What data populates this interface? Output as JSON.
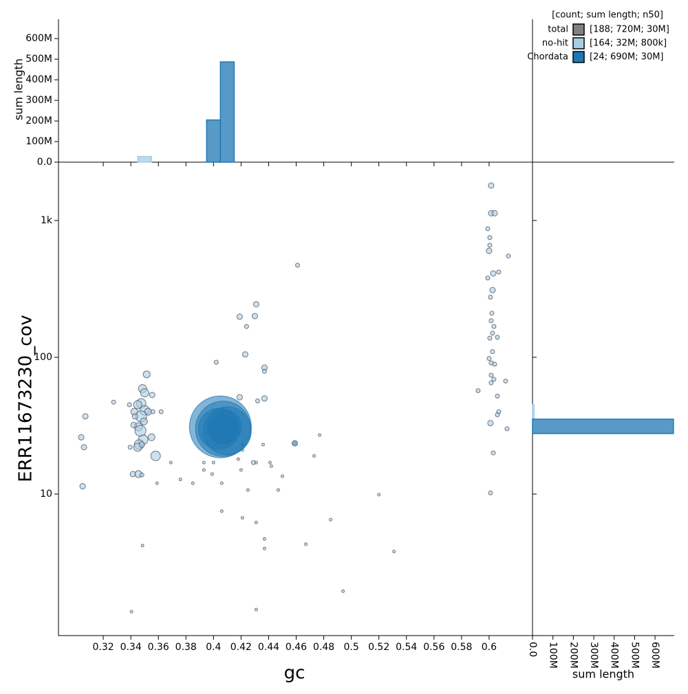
{
  "chart_data": {
    "type": "scatter",
    "x_label": "gc",
    "y_label": "ERR11673230_cov",
    "xlim": [
      0.2875,
      0.6315
    ],
    "ylim": [
      0.923,
      2670
    ],
    "log_y": true,
    "xticks": [
      0.32,
      0.34,
      0.36,
      0.38,
      0.4,
      0.42,
      0.44,
      0.46,
      0.48,
      0.5,
      0.52,
      0.54,
      0.56,
      0.58,
      0.6
    ],
    "yticks": [
      10,
      100,
      {
        "value": 1000,
        "label": "1k"
      }
    ],
    "legend_title": "[count; sum length; n50]",
    "series": [
      {
        "name": "total",
        "color": "#808080",
        "legend_label": "[188; 720M; 30M]",
        "x": [],
        "y": [],
        "lengths": []
      },
      {
        "name": "no-hit",
        "color": "#a6cee3",
        "legend_label": "[164; 32M; 800k]",
        "x": [
          0.6015,
          0.6015,
          0.604,
          0.599,
          0.6005,
          0.6005,
          0.6,
          0.614,
          0.607,
          0.603,
          0.599,
          0.6025,
          0.601,
          0.602,
          0.6015,
          0.6035,
          0.6025,
          0.606,
          0.6005,
          0.6025,
          0.6,
          0.6015,
          0.604,
          0.6015,
          0.612,
          0.6035,
          0.6015,
          0.592,
          0.606,
          0.607,
          0.606,
          0.601,
          0.613,
          0.603,
          0.601,
          0.431,
          0.419,
          0.43,
          0.424,
          0.423,
          0.437,
          0.437,
          0.402,
          0.419,
          0.437,
          0.432,
          0.461,
          0.307,
          0.3275,
          0.304,
          0.306,
          0.305,
          0.3515,
          0.3485,
          0.35,
          0.3555,
          0.3475,
          0.345,
          0.35,
          0.3525,
          0.356,
          0.362,
          0.3425,
          0.339,
          0.3475,
          0.343,
          0.3495,
          0.3455,
          0.347,
          0.342,
          0.355,
          0.349,
          0.346,
          0.345,
          0.348,
          0.358,
          0.3395,
          0.3415,
          0.3455,
          0.348,
          0.369,
          0.359,
          0.3485,
          0.3405,
          0.393,
          0.4,
          0.393,
          0.376,
          0.385,
          0.399,
          0.406,
          0.418,
          0.42,
          0.421,
          0.421,
          0.436,
          0.429,
          0.431,
          0.441,
          0.442,
          0.425,
          0.447,
          0.45,
          0.406,
          0.421,
          0.431,
          0.437,
          0.437,
          0.431,
          0.467,
          0.477,
          0.473,
          0.485,
          0.494,
          0.52,
          0.531
        ],
        "y": [
          1800,
          1130,
          1130,
          870,
          750,
          660,
          600,
          550,
          420,
          410,
          380,
          310,
          275,
          210,
          185,
          168,
          150,
          140,
          138,
          110,
          98,
          91,
          89,
          74,
          67,
          69,
          65,
          57,
          52,
          40,
          38,
          33,
          30,
          20,
          10.2,
          244,
          198,
          200,
          168,
          105,
          84,
          79,
          92,
          51,
          50,
          48,
          471,
          37,
          47,
          26,
          22,
          11.4,
          75,
          59,
          55,
          53,
          46,
          45,
          41,
          40,
          40,
          40,
          40,
          45,
          37,
          37,
          34,
          31,
          29,
          32,
          26,
          25,
          23,
          22,
          23,
          19,
          22,
          14,
          14,
          13.8,
          17,
          12,
          4.2,
          1.38,
          17,
          17,
          15,
          12.8,
          12,
          14,
          12,
          18,
          15,
          21,
          23,
          23,
          17,
          17,
          17,
          16,
          10.7,
          10.7,
          13.5,
          7.5,
          6.7,
          6.2,
          4.7,
          4.0,
          1.43,
          4.3,
          27,
          19,
          6.5,
          1.95,
          9.9,
          3.8
        ],
        "lengths": [
          400000,
          400000,
          400000,
          220000,
          220000,
          220000,
          400000,
          220000,
          220000,
          400000,
          220000,
          400000,
          220000,
          220000,
          220000,
          220000,
          220000,
          220000,
          220000,
          220000,
          220000,
          220000,
          220000,
          220000,
          220000,
          220000,
          220000,
          220000,
          220000,
          220000,
          220000,
          400000,
          220000,
          220000,
          220000,
          400000,
          400000,
          400000,
          220000,
          400000,
          400000,
          220000,
          220000,
          400000,
          400000,
          220000,
          220000,
          400000,
          220000,
          400000,
          400000,
          400000,
          620000,
          890000,
          890000,
          400000,
          1200000,
          890000,
          1200000,
          620000,
          220000,
          220000,
          620000,
          220000,
          1600000,
          400000,
          620000,
          890000,
          1600000,
          400000,
          620000,
          1200000,
          1200000,
          890000,
          400000,
          1200000,
          220000,
          400000,
          620000,
          220000,
          100000,
          100000,
          100000,
          100000,
          100000,
          100000,
          100000,
          100000,
          100000,
          100000,
          100000,
          100000,
          100000,
          100000,
          100000,
          100000,
          220000,
          100000,
          100000,
          100000,
          100000,
          100000,
          100000,
          100000,
          100000,
          100000,
          100000,
          100000,
          100000,
          100000,
          100000,
          100000,
          100000,
          100000,
          100000,
          100000
        ]
      },
      {
        "name": "Chordata",
        "color": "#1f78b4",
        "legend_label": "[24; 690M; 30M]",
        "x": [
          0.405,
          0.407,
          0.41,
          0.404,
          0.408,
          0.407,
          0.459
        ],
        "y": [
          31,
          30,
          29,
          30,
          31,
          30,
          23.5
        ],
        "lengths": [
          50000000,
          40000000,
          30000000,
          22000000,
          15000000,
          10000000,
          400000
        ]
      }
    ],
    "gc_hist": {
      "y_label": "sum length",
      "ylim": [
        0,
        694000000
      ],
      "yticks": [
        {
          "value": 0,
          "label": "0.0"
        },
        {
          "value": 100000000,
          "label": "100M"
        },
        {
          "value": 200000000,
          "label": "200M"
        },
        {
          "value": 300000000,
          "label": "300M"
        },
        {
          "value": 400000000,
          "label": "400M"
        },
        {
          "value": 500000000,
          "label": "500M"
        },
        {
          "value": 600000000,
          "label": "600M"
        }
      ],
      "bins": [
        0.345,
        0.355,
        0.365,
        0.375,
        0.385,
        0.395,
        0.405,
        0.415
      ],
      "series": [
        {
          "name": "no-hit",
          "color": "#a6cee3",
          "values": [
            28000000,
            0,
            0,
            0,
            0,
            0,
            0
          ]
        },
        {
          "name": "Chordata",
          "color": "#1f78b4",
          "values": [
            0,
            0,
            0,
            0,
            0,
            205000000,
            487000000
          ]
        }
      ]
    },
    "cov_hist": {
      "x_label": "sum length",
      "xlim": [
        0,
        694000000
      ],
      "xticks": [
        {
          "value": 0,
          "label": "0.0"
        },
        {
          "value": 100000000,
          "label": "100M"
        },
        {
          "value": 200000000,
          "label": "200M"
        },
        {
          "value": 300000000,
          "label": "300M"
        },
        {
          "value": 400000000,
          "label": "400M"
        },
        {
          "value": 500000000,
          "label": "500M"
        },
        {
          "value": 600000000,
          "label": "600M"
        }
      ],
      "bins": [
        27.7,
        35.3,
        45
      ],
      "series": [
        {
          "name": "no-hit",
          "color": "#a6cee3",
          "values": [
            0,
            8000000
          ]
        },
        {
          "name": "Chordata",
          "color": "#1f78b4",
          "values": [
            690000000,
            0
          ]
        }
      ]
    }
  }
}
